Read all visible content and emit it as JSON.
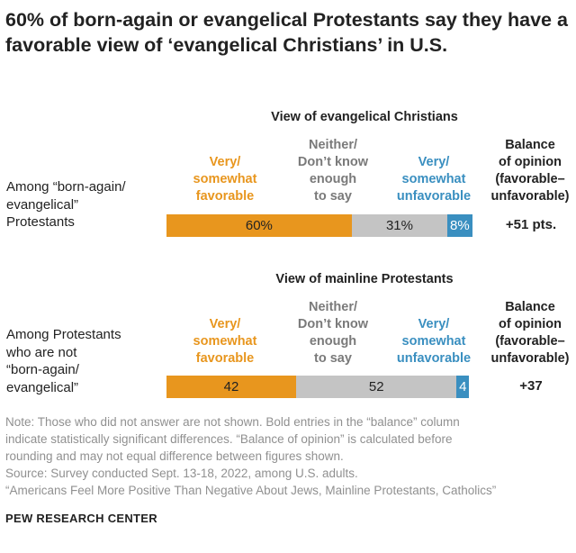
{
  "title": "60% of born-again or evangelical Protestants say they have a favorable view of ‘evangelical Christians’ in U.S.",
  "colors": {
    "favorable": "#E8961E",
    "neither": "#C4C4C4",
    "unfavorable": "#3A8FC0",
    "neither_text": "#7A7A7A"
  },
  "headers": {
    "favorable": [
      "Very/",
      "somewhat",
      "favorable"
    ],
    "neither": [
      "Neither/",
      "Don’t know",
      "enough",
      "to say"
    ],
    "unfavorable": [
      "Very/",
      "somewhat",
      "unfavorable"
    ],
    "balance": [
      "Balance",
      "of opinion",
      "(favorable–",
      "unfavorable)"
    ]
  },
  "chart_data": [
    {
      "type": "bar",
      "stacked": true,
      "title": "View of evangelical Christians",
      "row_label": [
        "Among “born-again/",
        "evangelical”",
        "Protestants"
      ],
      "series": [
        {
          "name": "Very/somewhat favorable",
          "value": 60,
          "label": "60%"
        },
        {
          "name": "Neither/Don’t know enough to say",
          "value": 31,
          "label": "31%"
        },
        {
          "name": "Very/somewhat unfavorable",
          "value": 8,
          "label": "8%"
        }
      ],
      "balance": "+51 pts."
    },
    {
      "type": "bar",
      "stacked": true,
      "title": "View of mainline Protestants",
      "row_label": [
        "Among Protestants",
        "who are not",
        "“born-again/",
        "evangelical”"
      ],
      "series": [
        {
          "name": "Very/somewhat favorable",
          "value": 42,
          "label": "42"
        },
        {
          "name": "Neither/Don’t know enough to say",
          "value": 52,
          "label": "52"
        },
        {
          "name": "Very/somewhat unfavorable",
          "value": 4,
          "label": "4"
        }
      ],
      "balance": "+37"
    }
  ],
  "notes": [
    "Note: Those who did not answer are not shown. Bold entries in the “balance” column",
    "indicate statistically significant differences. “Balance of opinion” is calculated before",
    "rounding and may not equal difference between figures shown.",
    "Source: Survey conducted Sept. 13-18, 2022, among U.S. adults.",
    "“Americans Feel More Positive Than Negative About Jews, Mainline Protestants, Catholics”"
  ],
  "source_org": "PEW RESEARCH CENTER"
}
